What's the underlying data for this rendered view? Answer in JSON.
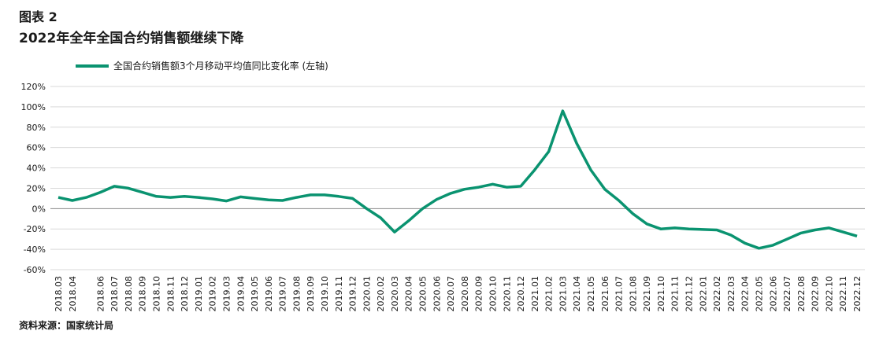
{
  "header": {
    "figure_label": "图表 2",
    "title": "2022年全年全国合约销售额继续下降"
  },
  "footer": {
    "source": "资料来源：国家统计局"
  },
  "colors": {
    "series": "#0a9370",
    "grid": "#d9d9d9"
  },
  "chart_data": {
    "type": "line",
    "xlabel": "",
    "ylabel": "",
    "ylim": [
      -60,
      120
    ],
    "yticks": [
      -60,
      -40,
      -20,
      0,
      20,
      40,
      60,
      80,
      100,
      120
    ],
    "y_unit": "%",
    "grid": true,
    "legend_position": "top-left",
    "x": [
      "2018.03",
      "2018.04",
      "2018.05",
      "2018.06",
      "2018.07",
      "2018.08",
      "2018.09",
      "2018.10",
      "2018.11",
      "2018.12",
      "2019.01",
      "2019.02",
      "2019.03",
      "2019.04",
      "2019.05",
      "2019.06",
      "2019.07",
      "2019.08",
      "2019.09",
      "2019.10",
      "2019.11",
      "2019.12",
      "2020.01",
      "2020.02",
      "2020.03",
      "2020.04",
      "2020.05",
      "2020.06",
      "2020.07",
      "2020.08",
      "2020.09",
      "2020.10",
      "2020.11",
      "2020.12",
      "2021.01",
      "2021.02",
      "2021.03",
      "2021.04",
      "2021.05",
      "2021.06",
      "2021.07",
      "2021.08",
      "2021.09",
      "2021.10",
      "2021.11",
      "2021.12",
      "2022.01",
      "2022.02",
      "2022.03",
      "2022.04",
      "2022.05",
      "2022.06",
      "2022.07",
      "2022.08",
      "2022.09",
      "2022.10",
      "2022.11",
      "2022.12"
    ],
    "x_tick_labels": [
      "2018.03",
      "2018.04",
      "2018.06",
      "2018.07",
      "2018.08",
      "2018.09",
      "2018.10",
      "2018.11",
      "2018.12",
      "2019.01",
      "2019.02",
      "2019.03",
      "2019.04",
      "2019.05",
      "2019.06",
      "2019.07",
      "2019.08",
      "2019.09",
      "2019.10",
      "2019.11",
      "2019.12",
      "2020.01",
      "2020.02",
      "2020.03",
      "2020.04",
      "2020.05",
      "2020.06",
      "2020.07",
      "2020.08",
      "2020.09",
      "2020.10",
      "2020.11",
      "2020.12",
      "2021.01",
      "2021.02",
      "2021.03",
      "2021.04",
      "2021.05",
      "2021.06",
      "2021.07",
      "2021.08",
      "2021.09",
      "2021.10",
      "2021.11",
      "2021.12",
      "2022.01",
      "2022.02",
      "2022.03",
      "2022.04",
      "2022.05",
      "2022.06",
      "2022.07",
      "2022.08",
      "2022.09",
      "2022.10",
      "2022.11",
      "2022.12"
    ],
    "series": [
      {
        "name": "全国合约销售额3个月移动平均值同比变化率 (左轴)",
        "values": [
          11,
          8,
          11,
          16,
          22,
          20,
          16,
          12,
          11,
          12,
          11,
          9.5,
          7.5,
          11.5,
          10,
          8.5,
          8,
          11,
          13.5,
          13.5,
          12,
          10,
          0,
          -9,
          -23,
          -12,
          0,
          9,
          15,
          19,
          21,
          24,
          21,
          22,
          38,
          56,
          96,
          64,
          38,
          19,
          8,
          -5,
          -15,
          -20,
          -19,
          -20,
          -20.5,
          -21,
          -26,
          -34,
          -39,
          -36,
          -30,
          -24,
          -21,
          -19,
          -23,
          -27
        ]
      }
    ]
  }
}
